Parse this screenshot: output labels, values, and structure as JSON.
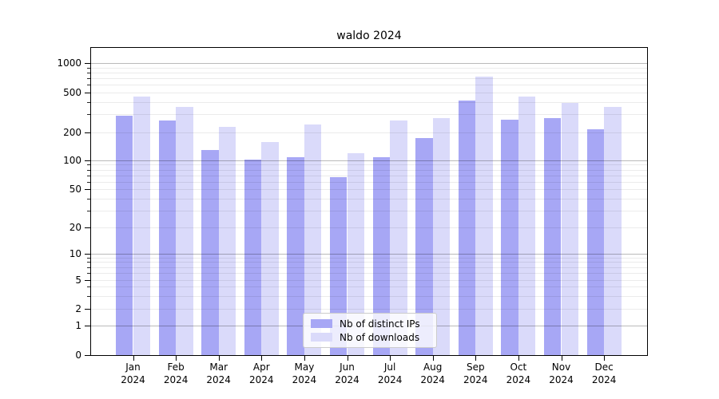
{
  "title": "waldo 2024",
  "legend": {
    "entries": [
      {
        "label": "Nb of distinct IPs",
        "color": "#a7a7f5"
      },
      {
        "label": "Nb of downloads",
        "color": "#dadafa"
      }
    ]
  },
  "colors": {
    "distinct_ips_bar": "#a7a7f5",
    "downloads_bar": "#dadafa",
    "major_grid": "#bababa",
    "minor_grid": "#e9e9e9",
    "axis": "#000000"
  },
  "chart_data": {
    "type": "bar",
    "title": "waldo 2024",
    "categories": [
      "Jan 2024",
      "Feb 2024",
      "Mar 2024",
      "Apr 2024",
      "May 2024",
      "Jun 2024",
      "Jul 2024",
      "Aug 2024",
      "Sep 2024",
      "Oct 2024",
      "Nov 2024",
      "Dec 2024"
    ],
    "series": [
      {
        "name": "Nb of distinct IPs",
        "color": "#a7a7f5",
        "values": [
          290,
          260,
          130,
          103,
          108,
          67,
          108,
          173,
          410,
          265,
          275,
          215
        ]
      },
      {
        "name": "Nb of downloads",
        "color": "#dadafa",
        "values": [
          450,
          355,
          225,
          157,
          240,
          120,
          260,
          275,
          720,
          450,
          390,
          355
        ]
      }
    ],
    "xlabel": "",
    "ylabel": "",
    "yscale": "log (symlog-like, linear segment 0–1)",
    "yticks": [
      0,
      1,
      2,
      5,
      10,
      20,
      50,
      100,
      200,
      500,
      1000
    ],
    "ylim": [
      0,
      1440
    ],
    "grid": "horizontal, major at powers of 10, log minors, drawn over bars",
    "legend_position": "lower center"
  }
}
